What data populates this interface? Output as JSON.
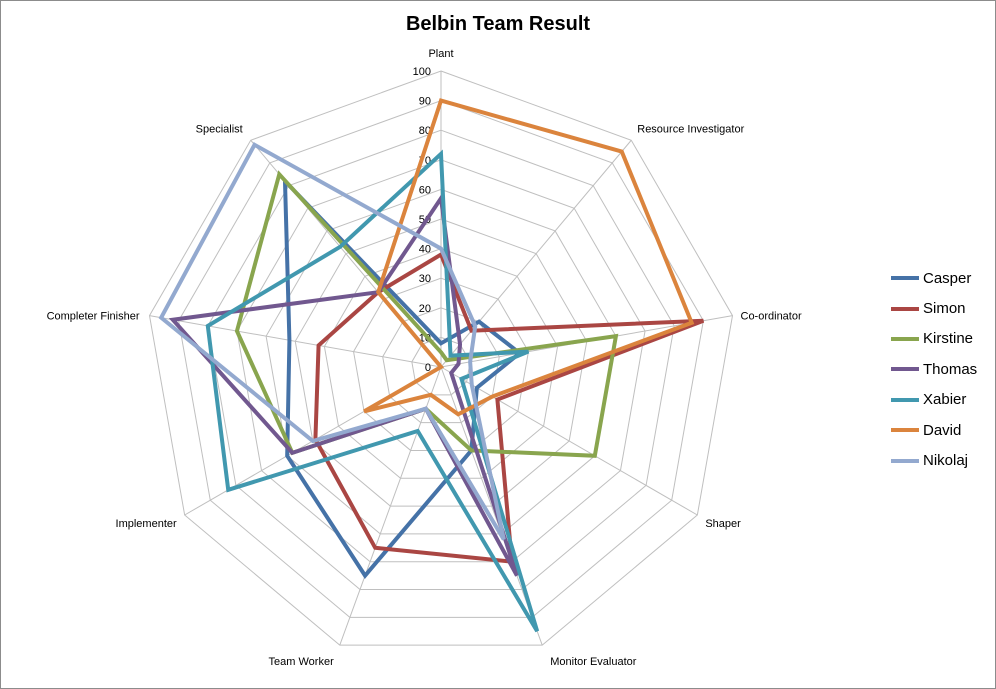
{
  "chart_data": {
    "type": "radar",
    "title": "Belbin Team Result",
    "axes": [
      "Plant",
      "Resource Investigator",
      "Co-ordinator",
      "Shaper",
      "Monitor Evaluator",
      "Team Worker",
      "Implementer",
      "Completer Finisher",
      "Specialist"
    ],
    "ticks": [
      0,
      10,
      20,
      30,
      40,
      50,
      60,
      70,
      80,
      90,
      100
    ],
    "rlim": [
      0,
      100
    ],
    "grid": true,
    "legend": "right",
    "series": [
      {
        "name": "Casper",
        "color": "#4572a7",
        "values": [
          8,
          20,
          27,
          14,
          30,
          75,
          60,
          52,
          82
        ]
      },
      {
        "name": "Simon",
        "color": "#aa4643",
        "values": [
          38,
          16,
          90,
          22,
          70,
          65,
          49,
          42,
          33
        ]
      },
      {
        "name": "Kirstine",
        "color": "#89a54e",
        "values": [
          5,
          3,
          60,
          60,
          30,
          15,
          58,
          70,
          85
        ]
      },
      {
        "name": "Thomas",
        "color": "#71588f",
        "values": [
          57,
          10,
          6,
          4,
          75,
          15,
          58,
          92,
          33
        ]
      },
      {
        "name": "Xabier",
        "color": "#4198af",
        "values": [
          72,
          5,
          30,
          8,
          95,
          23,
          83,
          80,
          53
        ]
      },
      {
        "name": "David",
        "color": "#db843d",
        "values": [
          90,
          95,
          86,
          20,
          17,
          10,
          30,
          0,
          33
        ]
      },
      {
        "name": "Nikolaj",
        "color": "#93a9cf",
        "values": [
          40,
          18,
          10,
          12,
          62,
          15,
          50,
          96,
          98
        ]
      }
    ]
  }
}
